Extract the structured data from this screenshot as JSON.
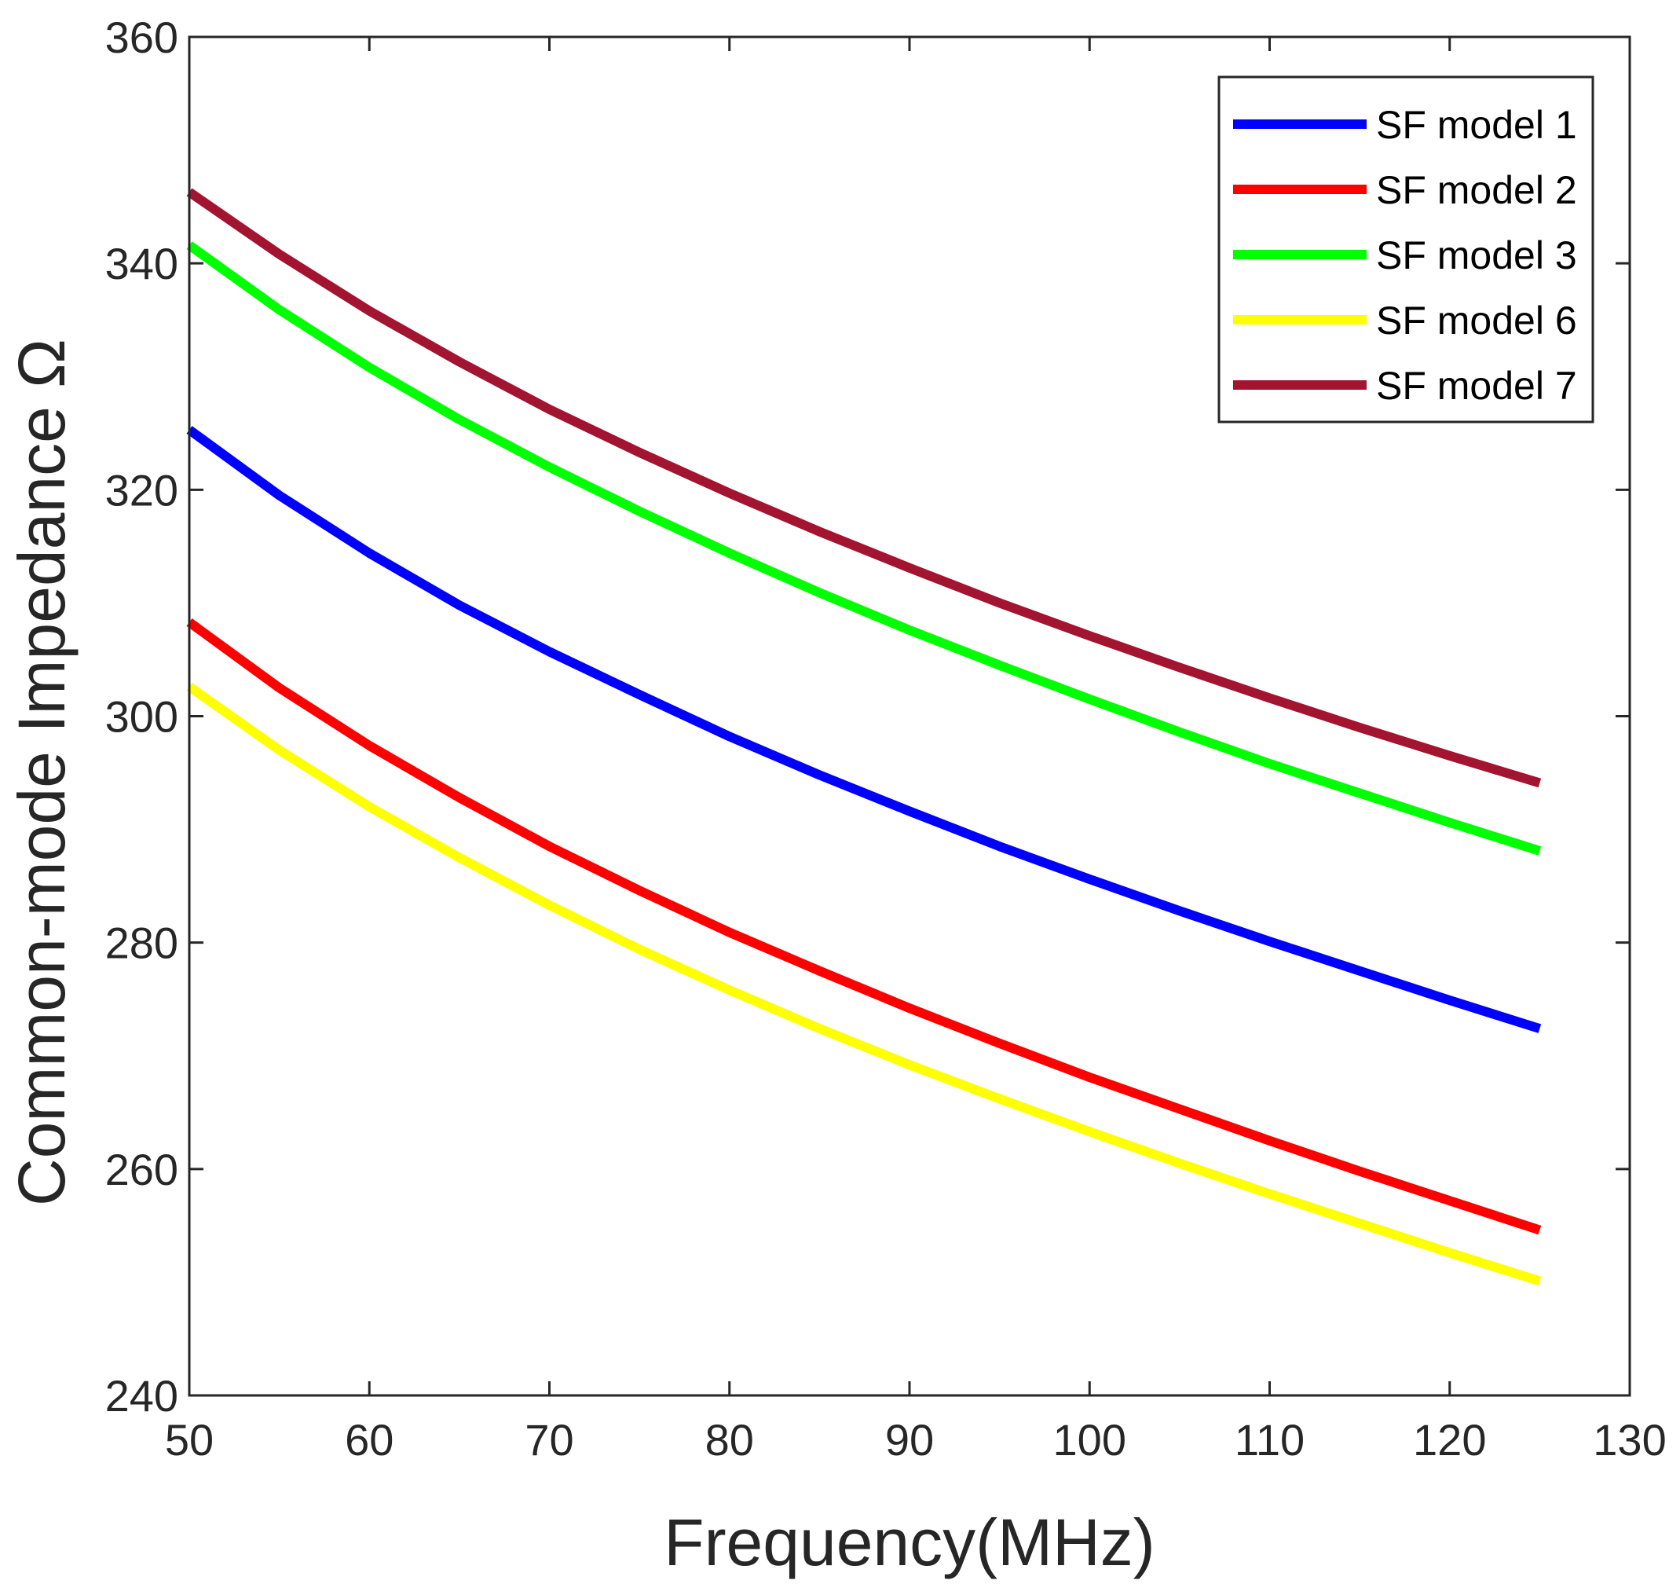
{
  "chart_data": {
    "type": "line",
    "xlabel": "Frequency(MHz)",
    "ylabel": "Common-mode Impedance Ω",
    "xlim": [
      50,
      130
    ],
    "ylim": [
      240,
      360
    ],
    "xticks": [
      50,
      60,
      70,
      80,
      90,
      100,
      110,
      120,
      130
    ],
    "yticks": [
      240,
      260,
      280,
      300,
      320,
      340,
      360
    ],
    "xtick_labels": [
      "50",
      "60",
      "70",
      "80",
      "90",
      "100",
      "110",
      "120",
      "130"
    ],
    "ytick_labels": [
      "240",
      "260",
      "280",
      "300",
      "320",
      "340",
      "360"
    ],
    "grid": false,
    "legend_position": "top-right",
    "x": [
      50,
      55,
      60,
      65,
      70,
      75,
      80,
      85,
      90,
      95,
      100,
      105,
      110,
      115,
      120,
      125
    ],
    "series": [
      {
        "name": "SF model 1",
        "color": "#0000ff",
        "values": [
          325.3,
          319.5,
          314.4,
          309.8,
          305.7,
          301.9,
          298.2,
          294.8,
          291.6,
          288.5,
          285.6,
          282.8,
          280.1,
          277.5,
          274.9,
          272.4
        ]
      },
      {
        "name": "SF model 2",
        "color": "#ff0000",
        "values": [
          308.3,
          302.5,
          297.4,
          292.8,
          288.5,
          284.6,
          280.9,
          277.5,
          274.2,
          271.1,
          268.1,
          265.3,
          262.5,
          259.8,
          257.2,
          254.6
        ]
      },
      {
        "name": "SF model 3",
        "color": "#00ff00",
        "values": [
          341.6,
          335.9,
          330.8,
          326.2,
          322.0,
          318.1,
          314.4,
          310.9,
          307.6,
          304.5,
          301.5,
          298.6,
          295.8,
          293.2,
          290.6,
          288.1
        ]
      },
      {
        "name": "SF model 6",
        "color": "#ffff00",
        "values": [
          302.6,
          297.0,
          292.0,
          287.5,
          283.3,
          279.4,
          275.8,
          272.4,
          269.2,
          266.2,
          263.3,
          260.5,
          257.8,
          255.2,
          252.6,
          250.1
        ]
      },
      {
        "name": "SF model 7",
        "color": "#a2142f",
        "values": [
          346.3,
          340.8,
          335.8,
          331.3,
          327.1,
          323.3,
          319.7,
          316.3,
          313.1,
          310.0,
          307.1,
          304.3,
          301.6,
          299.0,
          296.5,
          294.1
        ]
      }
    ]
  }
}
